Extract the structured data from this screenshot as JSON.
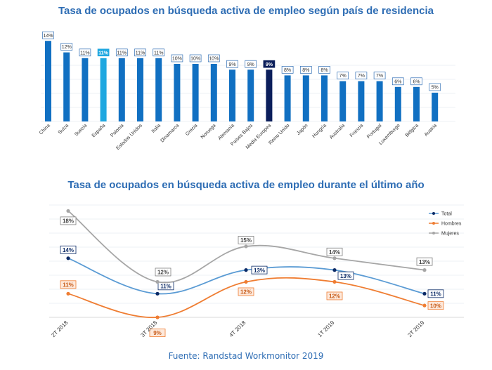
{
  "colors": {
    "title": "#2e6db4",
    "bar_default": "#1170c2",
    "bar_highlight": "#1ea7e0",
    "bar_average": "#0b1e5b",
    "total": "#5a9bd4",
    "total_marker": "#0b2a66",
    "hombres": "#ef7d32",
    "mujeres": "#a6a6a6"
  },
  "chart_data": [
    {
      "type": "bar",
      "title": "Tasa de ocupados en búsqueda activa de empleo según país de residencia",
      "categories": [
        "China",
        "Suiza",
        "Suecia",
        "España",
        "Polonia",
        "Estados Unidos",
        "Italia",
        "Dinamarca",
        "Grecia",
        "Noruega",
        "Alemania",
        "Países Bajos",
        "Media Europea",
        "Reino Unido",
        "Japón",
        "Hungría",
        "Australia",
        "Francia",
        "Portugal",
        "Luxemburgo",
        "Bélgica",
        "Austria"
      ],
      "values": [
        14,
        12,
        11,
        11,
        11,
        11,
        11,
        10,
        10,
        10,
        9,
        9,
        9,
        8,
        8,
        8,
        7,
        7,
        7,
        6,
        6,
        5
      ],
      "data_labels": [
        "14%",
        "12%",
        "11%",
        "11%",
        "11%",
        "11%",
        "11%",
        "10%",
        "10%",
        "10%",
        "9%",
        "9%",
        "9%",
        "8%",
        "8%",
        "8%",
        "7%",
        "7%",
        "7%",
        "6%",
        "6%",
        "5%"
      ],
      "highlight": {
        "España": "highlight",
        "Media Europea": "average"
      },
      "xlabel": "",
      "ylabel": "",
      "ylim": [
        0,
        15
      ],
      "grid": true
    },
    {
      "type": "line",
      "title": "Tasa de ocupados en búsqueda activa de empleo durante el último año",
      "categories": [
        "2T 2018",
        "3T 2018",
        "4T 2018",
        "1T 2019",
        "2T 2019"
      ],
      "series": [
        {
          "name": "Total",
          "values": [
            14,
            11,
            13,
            13,
            11
          ],
          "labels": [
            "14%",
            "11%",
            "13%",
            "13%",
            "11%"
          ]
        },
        {
          "name": "Hombres",
          "values": [
            11,
            9,
            12,
            12,
            10
          ],
          "labels": [
            "11%",
            "9%",
            "12%",
            "12%",
            "10%"
          ]
        },
        {
          "name": "Mujeres",
          "values": [
            18,
            12,
            15,
            14,
            13
          ],
          "labels": [
            "18%",
            "12%",
            "15%",
            "14%",
            "13%"
          ]
        }
      ],
      "legend_position": "top-right",
      "xlabel": "",
      "ylabel": "",
      "ylim": [
        9,
        18.5
      ],
      "grid": true
    }
  ],
  "source": "Fuente: Randstad Workmonitor 2019"
}
